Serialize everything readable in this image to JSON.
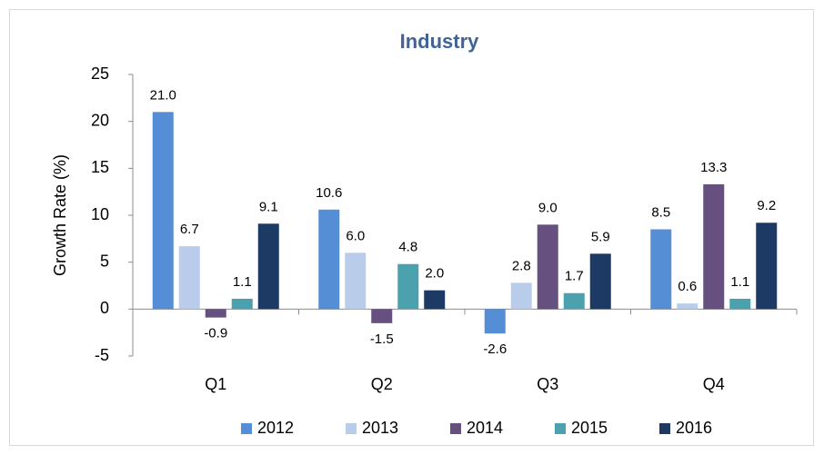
{
  "chart_data": {
    "type": "bar",
    "title": "Industry",
    "y_label": "Growth Rate (%)",
    "categories": [
      "Q1",
      "Q2",
      "Q3",
      "Q4"
    ],
    "series": [
      {
        "name": "2012",
        "color": "#558ed5",
        "values": [
          21.0,
          10.6,
          -2.6,
          8.5
        ],
        "value_labels": [
          "21.0",
          "10.6",
          "-2.6",
          "8.5"
        ]
      },
      {
        "name": "2013",
        "color": "#b9cdeb",
        "values": [
          6.7,
          6.0,
          2.8,
          0.6
        ],
        "value_labels": [
          "6.7",
          "6.0",
          "2.8",
          "0.6"
        ]
      },
      {
        "name": "2014",
        "color": "#65507f",
        "values": [
          -0.9,
          -1.5,
          9.0,
          13.3
        ],
        "value_labels": [
          "-0.9",
          "-1.5",
          "9.0",
          "13.3"
        ]
      },
      {
        "name": "2015",
        "color": "#4ba1ad",
        "values": [
          1.1,
          4.8,
          1.7,
          1.1
        ],
        "value_labels": [
          "1.1",
          "4.8",
          "1.7",
          "1.1"
        ]
      },
      {
        "name": "2016",
        "color": "#1c3a63",
        "values": [
          9.1,
          2.0,
          5.9,
          9.2
        ],
        "value_labels": [
          "9.1",
          "2.0",
          "5.9",
          "9.2"
        ]
      }
    ],
    "ylim": [
      -5,
      25
    ],
    "yticks": [
      -5,
      0,
      5,
      10,
      15,
      20,
      25
    ],
    "grid": false,
    "legend": "bottom"
  }
}
